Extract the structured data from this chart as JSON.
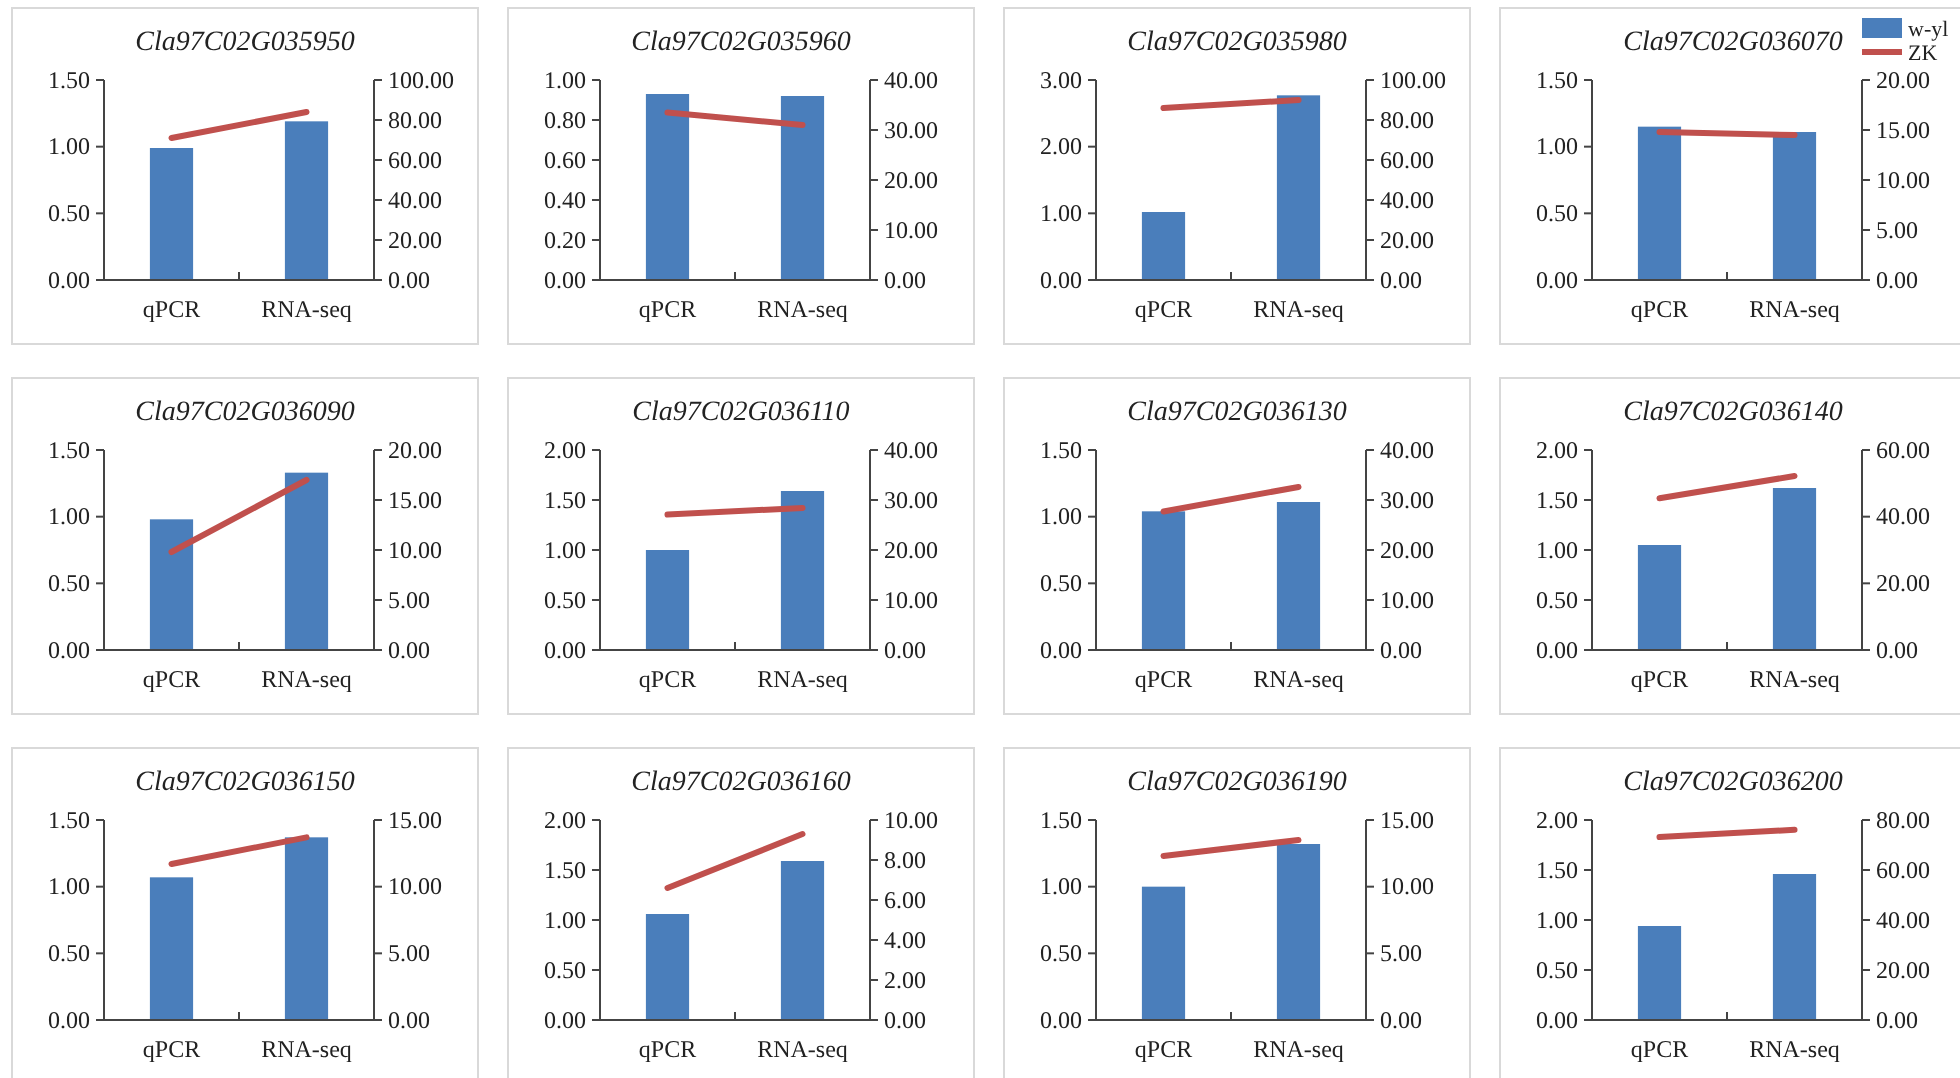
{
  "chart_data": [
    {
      "type": "bar",
      "title": "Cla97C02G035950",
      "categories": [
        "qPCR",
        "RNA-seq"
      ],
      "series": [
        {
          "color": "#4a7ebb",
          "values": [
            0.99,
            1.19
          ]
        },
        {
          "type": "line",
          "axis": "y2",
          "color": "#c0504d",
          "values": [
            71,
            84
          ]
        }
      ],
      "ylim": [
        0,
        1.5
      ],
      "yticks": [
        {
          "value": 0,
          "label": "0.00"
        },
        {
          "value": 0.5,
          "label": "0.50"
        },
        {
          "value": 1,
          "label": "1.00"
        },
        {
          "value": 1.5,
          "label": "1.50"
        }
      ],
      "y2lim": [
        0,
        100
      ],
      "y2ticks": [
        {
          "value": 0,
          "label": "0.00"
        },
        {
          "value": 20,
          "label": "20.00"
        },
        {
          "value": 40,
          "label": "40.00"
        },
        {
          "value": 60,
          "label": "60.00"
        },
        {
          "value": 80,
          "label": "80.00"
        },
        {
          "value": 100,
          "label": "100.00"
        }
      ]
    },
    {
      "type": "bar",
      "title": "Cla97C02G035960",
      "categories": [
        "qPCR",
        "RNA-seq"
      ],
      "series": [
        {
          "color": "#4a7ebb",
          "values": [
            0.93,
            0.92
          ]
        },
        {
          "type": "line",
          "axis": "y2",
          "color": "#c0504d",
          "values": [
            33.5,
            31
          ]
        }
      ],
      "ylim": [
        0,
        1
      ],
      "yticks": [
        {
          "value": 0,
          "label": "0.00"
        },
        {
          "value": 0.2,
          "label": "0.20"
        },
        {
          "value": 0.4,
          "label": "0.40"
        },
        {
          "value": 0.6,
          "label": "0.60"
        },
        {
          "value": 0.8,
          "label": "0.80"
        },
        {
          "value": 1,
          "label": "1.00"
        }
      ],
      "y2lim": [
        0,
        40
      ],
      "y2ticks": [
        {
          "value": 0,
          "label": "0.00"
        },
        {
          "value": 10,
          "label": "10.00"
        },
        {
          "value": 20,
          "label": "20.00"
        },
        {
          "value": 30,
          "label": "30.00"
        },
        {
          "value": 40,
          "label": "40.00"
        }
      ]
    },
    {
      "type": "bar",
      "title": "Cla97C02G035980",
      "categories": [
        "qPCR",
        "RNA-seq"
      ],
      "series": [
        {
          "color": "#4a7ebb",
          "values": [
            1.02,
            2.77
          ]
        },
        {
          "type": "line",
          "axis": "y2",
          "color": "#c0504d",
          "values": [
            86,
            90
          ]
        }
      ],
      "ylim": [
        0,
        3
      ],
      "yticks": [
        {
          "value": 0,
          "label": "0.00"
        },
        {
          "value": 1,
          "label": "1.00"
        },
        {
          "value": 2,
          "label": "2.00"
        },
        {
          "value": 3,
          "label": "3.00"
        }
      ],
      "y2lim": [
        0,
        100
      ],
      "y2ticks": [
        {
          "value": 0,
          "label": "0.00"
        },
        {
          "value": 20,
          "label": "20.00"
        },
        {
          "value": 40,
          "label": "40.00"
        },
        {
          "value": 60,
          "label": "60.00"
        },
        {
          "value": 80,
          "label": "80.00"
        },
        {
          "value": 100,
          "label": "100.00"
        }
      ]
    },
    {
      "type": "bar",
      "title": "Cla97C02G036070",
      "categories": [
        "qPCR",
        "RNA-seq"
      ],
      "legend": "top right",
      "series": [
        {
          "name": "w-yl",
          "color": "#4a7ebb",
          "values": [
            1.15,
            1.11
          ]
        },
        {
          "type": "line",
          "name": "ZK",
          "axis": "y2",
          "color": "#c0504d",
          "values": [
            14.8,
            14.5
          ]
        }
      ],
      "ylim": [
        0,
        1.5
      ],
      "yticks": [
        {
          "value": 0,
          "label": "0.00"
        },
        {
          "value": 0.5,
          "label": "0.50"
        },
        {
          "value": 1,
          "label": "1.00"
        },
        {
          "value": 1.5,
          "label": "1.50"
        }
      ],
      "y2lim": [
        0,
        20
      ],
      "y2ticks": [
        {
          "value": 0,
          "label": "0.00"
        },
        {
          "value": 5,
          "label": "5.00"
        },
        {
          "value": 10,
          "label": "10.00"
        },
        {
          "value": 15,
          "label": "15.00"
        },
        {
          "value": 20,
          "label": "20.00"
        }
      ]
    },
    {
      "type": "bar",
      "title": "Cla97C02G036090",
      "categories": [
        "qPCR",
        "RNA-seq"
      ],
      "series": [
        {
          "color": "#4a7ebb",
          "values": [
            0.98,
            1.33
          ]
        },
        {
          "type": "line",
          "axis": "y2",
          "color": "#c0504d",
          "values": [
            9.8,
            17
          ]
        }
      ],
      "ylim": [
        0,
        1.5
      ],
      "yticks": [
        {
          "value": 0,
          "label": "0.00"
        },
        {
          "value": 0.5,
          "label": "0.50"
        },
        {
          "value": 1,
          "label": "1.00"
        },
        {
          "value": 1.5,
          "label": "1.50"
        }
      ],
      "y2lim": [
        0,
        20
      ],
      "y2ticks": [
        {
          "value": 0,
          "label": "0.00"
        },
        {
          "value": 5,
          "label": "5.00"
        },
        {
          "value": 10,
          "label": "10.00"
        },
        {
          "value": 15,
          "label": "15.00"
        },
        {
          "value": 20,
          "label": "20.00"
        }
      ]
    },
    {
      "type": "bar",
      "title": "Cla97C02G036110",
      "categories": [
        "qPCR",
        "RNA-seq"
      ],
      "series": [
        {
          "color": "#4a7ebb",
          "values": [
            1.0,
            1.59
          ]
        },
        {
          "type": "line",
          "axis": "y2",
          "color": "#c0504d",
          "values": [
            27.1,
            28.4
          ]
        }
      ],
      "ylim": [
        0,
        2
      ],
      "yticks": [
        {
          "value": 0,
          "label": "0.00"
        },
        {
          "value": 0.5,
          "label": "0.50"
        },
        {
          "value": 1,
          "label": "1.00"
        },
        {
          "value": 1.5,
          "label": "1.50"
        },
        {
          "value": 2,
          "label": "2.00"
        }
      ],
      "y2lim": [
        0,
        40
      ],
      "y2ticks": [
        {
          "value": 0,
          "label": "0.00"
        },
        {
          "value": 10,
          "label": "10.00"
        },
        {
          "value": 20,
          "label": "20.00"
        },
        {
          "value": 30,
          "label": "30.00"
        },
        {
          "value": 40,
          "label": "40.00"
        }
      ]
    },
    {
      "type": "bar",
      "title": "Cla97C02G036130",
      "categories": [
        "qPCR",
        "RNA-seq"
      ],
      "series": [
        {
          "color": "#4a7ebb",
          "values": [
            1.04,
            1.11
          ]
        },
        {
          "type": "line",
          "axis": "y2",
          "color": "#c0504d",
          "values": [
            27.7,
            32.6
          ]
        }
      ],
      "ylim": [
        0,
        1.5
      ],
      "yticks": [
        {
          "value": 0,
          "label": "0.00"
        },
        {
          "value": 0.5,
          "label": "0.50"
        },
        {
          "value": 1,
          "label": "1.00"
        },
        {
          "value": 1.5,
          "label": "1.50"
        }
      ],
      "y2lim": [
        0,
        40
      ],
      "y2ticks": [
        {
          "value": 0,
          "label": "0.00"
        },
        {
          "value": 10,
          "label": "10.00"
        },
        {
          "value": 20,
          "label": "20.00"
        },
        {
          "value": 30,
          "label": "30.00"
        },
        {
          "value": 40,
          "label": "40.00"
        }
      ]
    },
    {
      "type": "bar",
      "title": "Cla97C02G036140",
      "categories": [
        "qPCR",
        "RNA-seq"
      ],
      "series": [
        {
          "color": "#4a7ebb",
          "values": [
            1.05,
            1.62
          ]
        },
        {
          "type": "line",
          "axis": "y2",
          "color": "#c0504d",
          "values": [
            45.5,
            52.2
          ]
        }
      ],
      "ylim": [
        0,
        2
      ],
      "yticks": [
        {
          "value": 0,
          "label": "0.00"
        },
        {
          "value": 0.5,
          "label": "0.50"
        },
        {
          "value": 1,
          "label": "1.00"
        },
        {
          "value": 1.5,
          "label": "1.50"
        },
        {
          "value": 2,
          "label": "2.00"
        }
      ],
      "y2lim": [
        0,
        60
      ],
      "y2ticks": [
        {
          "value": 0,
          "label": "0.00"
        },
        {
          "value": 20,
          "label": "20.00"
        },
        {
          "value": 40,
          "label": "40.00"
        },
        {
          "value": 60,
          "label": "60.00"
        }
      ]
    },
    {
      "type": "bar",
      "title": "Cla97C02G036150",
      "categories": [
        "qPCR",
        "RNA-seq"
      ],
      "series": [
        {
          "color": "#4a7ebb",
          "values": [
            1.07,
            1.37
          ]
        },
        {
          "type": "line",
          "axis": "y2",
          "color": "#c0504d",
          "values": [
            11.7,
            13.7
          ]
        }
      ],
      "ylim": [
        0,
        1.5
      ],
      "yticks": [
        {
          "value": 0,
          "label": "0.00"
        },
        {
          "value": 0.5,
          "label": "0.50"
        },
        {
          "value": 1,
          "label": "1.00"
        },
        {
          "value": 1.5,
          "label": "1.50"
        }
      ],
      "y2lim": [
        0,
        15
      ],
      "y2ticks": [
        {
          "value": 0,
          "label": "0.00"
        },
        {
          "value": 5,
          "label": "5.00"
        },
        {
          "value": 10,
          "label": "10.00"
        },
        {
          "value": 15,
          "label": "15.00"
        }
      ]
    },
    {
      "type": "bar",
      "title": "Cla97C02G036160",
      "categories": [
        "qPCR",
        "RNA-seq"
      ],
      "series": [
        {
          "color": "#4a7ebb",
          "values": [
            1.06,
            1.59
          ]
        },
        {
          "type": "line",
          "axis": "y2",
          "color": "#c0504d",
          "values": [
            6.6,
            9.3
          ]
        }
      ],
      "ylim": [
        0,
        2
      ],
      "yticks": [
        {
          "value": 0,
          "label": "0.00"
        },
        {
          "value": 0.5,
          "label": "0.50"
        },
        {
          "value": 1,
          "label": "1.00"
        },
        {
          "value": 1.5,
          "label": "1.50"
        },
        {
          "value": 2,
          "label": "2.00"
        }
      ],
      "y2lim": [
        0,
        10
      ],
      "y2ticks": [
        {
          "value": 0,
          "label": "0.00"
        },
        {
          "value": 2,
          "label": "2.00"
        },
        {
          "value": 4,
          "label": "4.00"
        },
        {
          "value": 6,
          "label": "6.00"
        },
        {
          "value": 8,
          "label": "8.00"
        },
        {
          "value": 10,
          "label": "10.00"
        }
      ]
    },
    {
      "type": "bar",
      "title": "Cla97C02G036190",
      "categories": [
        "qPCR",
        "RNA-seq"
      ],
      "series": [
        {
          "color": "#4a7ebb",
          "values": [
            1.0,
            1.32
          ]
        },
        {
          "type": "line",
          "axis": "y2",
          "color": "#c0504d",
          "values": [
            12.3,
            13.5
          ]
        }
      ],
      "ylim": [
        0,
        1.5
      ],
      "yticks": [
        {
          "value": 0,
          "label": "0.00"
        },
        {
          "value": 0.5,
          "label": "0.50"
        },
        {
          "value": 1,
          "label": "1.00"
        },
        {
          "value": 1.5,
          "label": "1.50"
        }
      ],
      "y2lim": [
        0,
        15
      ],
      "y2ticks": [
        {
          "value": 0,
          "label": "0.00"
        },
        {
          "value": 5,
          "label": "5.00"
        },
        {
          "value": 10,
          "label": "10.00"
        },
        {
          "value": 15,
          "label": "15.00"
        }
      ]
    },
    {
      "type": "bar",
      "title": "Cla97C02G036200",
      "categories": [
        "qPCR",
        "RNA-seq"
      ],
      "series": [
        {
          "color": "#4a7ebb",
          "values": [
            0.94,
            1.46
          ]
        },
        {
          "type": "line",
          "axis": "y2",
          "color": "#c0504d",
          "values": [
            73.2,
            76.1
          ]
        }
      ],
      "ylim": [
        0,
        2
      ],
      "yticks": [
        {
          "value": 0,
          "label": "0.00"
        },
        {
          "value": 0.5,
          "label": "0.50"
        },
        {
          "value": 1,
          "label": "1.00"
        },
        {
          "value": 1.5,
          "label": "1.50"
        },
        {
          "value": 2,
          "label": "2.00"
        }
      ],
      "y2lim": [
        0,
        80
      ],
      "y2ticks": [
        {
          "value": 0,
          "label": "0.00"
        },
        {
          "value": 20,
          "label": "20.00"
        },
        {
          "value": 40,
          "label": "40.00"
        },
        {
          "value": 60,
          "label": "60.00"
        },
        {
          "value": 80,
          "label": "80.00"
        }
      ]
    }
  ]
}
